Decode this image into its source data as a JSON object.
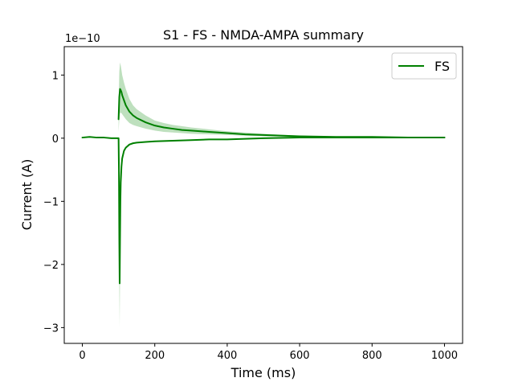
{
  "chart_data": {
    "type": "line",
    "title": "S1 - FS - NMDA-AMPA summary",
    "xlabel": "Time (ms)",
    "ylabel": "Current (A)",
    "y_offset_label": "1e−10",
    "xlim": [
      -50,
      1050
    ],
    "ylim": [
      -3.25,
      1.45
    ],
    "xticks": [
      0,
      200,
      400,
      600,
      800,
      1000
    ],
    "xtick_labels": [
      "0",
      "200",
      "400",
      "600",
      "800",
      "1000"
    ],
    "yticks": [
      1,
      0,
      -1,
      -2,
      -3
    ],
    "ytick_labels": [
      "1",
      "0",
      "−1",
      "−2",
      "−3"
    ],
    "grid": false,
    "legend_position": "upper right",
    "colors": {
      "line": "#008000",
      "band": "#a8d5a8"
    },
    "series": [
      {
        "name": "FS",
        "color": "#008000",
        "traces": [
          {
            "x": [
              0,
              20,
              40,
              60,
              80,
              95,
              100,
              101,
              102,
              103,
              104,
              105,
              106,
              108,
              110,
              115,
              120,
              130,
              140,
              150,
              175,
              200,
              250,
              300,
              350,
              400,
              500,
              600,
              700,
              800,
              900,
              1000
            ],
            "y": [
              0.01,
              0.02,
              0.01,
              0.01,
              0.0,
              0.0,
              0.0,
              -0.5,
              -1.6,
              -2.3,
              -1.6,
              -1.0,
              -0.7,
              -0.45,
              -0.32,
              -0.2,
              -0.15,
              -0.1,
              -0.08,
              -0.07,
              -0.06,
              -0.05,
              -0.04,
              -0.03,
              -0.02,
              -0.02,
              0.0,
              0.01,
              0.01,
              0.01,
              0.01,
              0.01
            ]
          },
          {
            "x": [
              100,
              102,
              104,
              106,
              108,
              110,
              115,
              120,
              130,
              140,
              150,
              175,
              200,
              225,
              250,
              275,
              300,
              350,
              400,
              450,
              500,
              600,
              700,
              800,
              900,
              1000
            ],
            "y": [
              0.3,
              0.65,
              0.78,
              0.76,
              0.73,
              0.68,
              0.6,
              0.52,
              0.42,
              0.36,
              0.32,
              0.25,
              0.2,
              0.17,
              0.15,
              0.13,
              0.12,
              0.1,
              0.08,
              0.06,
              0.05,
              0.03,
              0.02,
              0.02,
              0.01,
              0.01
            ]
          }
        ]
      }
    ],
    "shaded_bands": [
      {
        "x": [
          100,
          102,
          104,
          106,
          108,
          110,
          115,
          120,
          130,
          140,
          150,
          175,
          200,
          225,
          250,
          275,
          300,
          350,
          400,
          450,
          500,
          600
        ],
        "upper": [
          0.5,
          1.05,
          1.2,
          1.15,
          1.08,
          1.0,
          0.88,
          0.78,
          0.62,
          0.52,
          0.46,
          0.36,
          0.28,
          0.24,
          0.21,
          0.19,
          0.17,
          0.14,
          0.11,
          0.09,
          0.07,
          0.04
        ],
        "lower": [
          0.1,
          0.3,
          0.4,
          0.4,
          0.4,
          0.38,
          0.34,
          0.3,
          0.24,
          0.21,
          0.19,
          0.15,
          0.12,
          0.1,
          0.09,
          0.08,
          0.07,
          0.06,
          0.05,
          0.04,
          0.03,
          0.02
        ]
      },
      {
        "x": [
          100,
          101,
          102,
          103,
          104,
          105,
          106,
          108,
          110
        ],
        "upper": [
          0.0,
          -0.3,
          -1.0,
          -1.6,
          -1.1,
          -0.7,
          -0.5,
          -0.35,
          -0.25
        ],
        "lower": [
          0.0,
          -0.8,
          -2.4,
          -3.0,
          -2.2,
          -1.4,
          -0.9,
          -0.55,
          -0.4
        ]
      }
    ]
  }
}
